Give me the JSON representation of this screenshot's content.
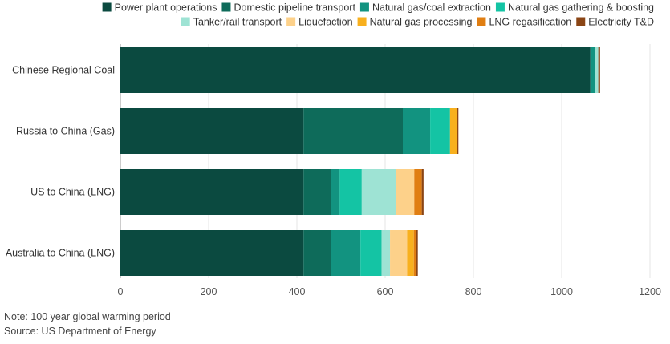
{
  "chart_data": {
    "type": "bar",
    "orientation": "horizontal",
    "stacked": true,
    "categories": [
      "Chinese Regional Coal",
      "Russia to China (Gas)",
      "US to China (LNG)",
      "Australia to China (LNG)"
    ],
    "series": [
      {
        "name": "Power plant operations",
        "color": "#0b4a40",
        "values": [
          1065,
          415,
          415,
          415
        ]
      },
      {
        "name": "Domestic pipeline transport",
        "color": "#0e6b5a",
        "values": [
          0,
          225,
          62,
          62
        ]
      },
      {
        "name": "Natural gas/coal extraction",
        "color": "#129380",
        "values": [
          10,
          62,
          20,
          67
        ]
      },
      {
        "name": "Natural gas gathering & boosting",
        "color": "#14c4a4",
        "values": [
          0,
          45,
          50,
          48
        ]
      },
      {
        "name": "Tanker/rail transport",
        "color": "#9ee3d4",
        "values": [
          8,
          0,
          77,
          19
        ]
      },
      {
        "name": "Liquefaction",
        "color": "#fdd18a",
        "values": [
          0,
          0,
          42,
          39
        ]
      },
      {
        "name": "Natural gas processing",
        "color": "#f8b01e",
        "values": [
          0,
          15,
          0,
          15
        ]
      },
      {
        "name": "LNG regasification",
        "color": "#e07e12",
        "values": [
          0,
          0,
          17,
          5
        ]
      },
      {
        "name": "Electricity T&D",
        "color": "#8a4515",
        "values": [
          4,
          4,
          4,
          4
        ]
      }
    ],
    "xlim": [
      0,
      1200
    ],
    "xticks": [
      0,
      200,
      400,
      600,
      800,
      1000,
      1200
    ],
    "grid": "vertical",
    "legend": "top-right"
  },
  "notes": {
    "note": "Note: 100 year global warming period",
    "source": "Source: US Department of Energy"
  }
}
